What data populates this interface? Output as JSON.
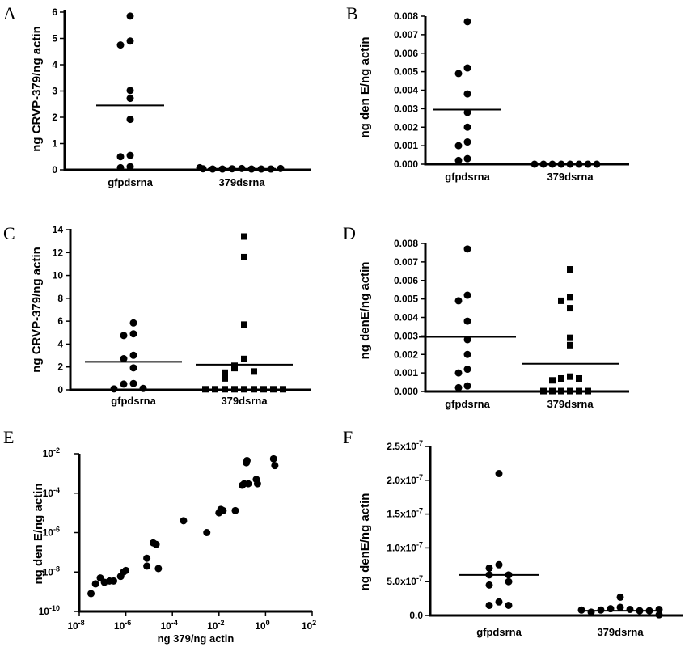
{
  "chart_data": [
    {
      "panel": "A",
      "type": "scatter",
      "ylabel": "ng CRVP-379/ng actin",
      "xlabel": "",
      "ylim": [
        0,
        6
      ],
      "yticks": [
        "0",
        "1",
        "2",
        "3",
        "4",
        "5",
        "6"
      ],
      "categories": [
        "gfpdsrna",
        "379dsrna"
      ],
      "series": [
        {
          "category": "gfpdsrna",
          "marker": "circle",
          "values": [
            5.85,
            4.9,
            4.75,
            3.02,
            2.72,
            1.92,
            0.55,
            0.5,
            0.12,
            0.08
          ],
          "mean": 2.45
        },
        {
          "category": "379dsrna",
          "marker": "circle",
          "values": [
            0.05,
            0.04,
            0.03,
            0.03,
            0.03,
            0.03,
            0.03,
            0.04,
            0.05,
            0.08
          ],
          "mean": 0.04
        }
      ]
    },
    {
      "panel": "B",
      "type": "scatter",
      "ylabel": "ng den E/ng actin",
      "xlabel": "",
      "ylim": [
        0,
        0.008
      ],
      "yticks": [
        "0.000",
        "0.001",
        "0.002",
        "0.003",
        "0.004",
        "0.005",
        "0.006",
        "0.007",
        "0.008"
      ],
      "categories": [
        "gfpdsrna",
        "379dsrna"
      ],
      "series": [
        {
          "category": "gfpdsrna",
          "marker": "circle",
          "values": [
            0.0077,
            0.0052,
            0.0049,
            0.0038,
            0.0028,
            0.002,
            0.0012,
            0.001,
            0.0003,
            0.0002
          ],
          "mean": 0.00295
        },
        {
          "category": "379dsrna",
          "marker": "circle",
          "values": [
            0,
            0,
            0,
            0,
            0,
            0,
            0,
            0
          ],
          "mean": 0
        }
      ]
    },
    {
      "panel": "C",
      "type": "scatter",
      "ylabel": "ng CRVP-379/ng actin",
      "xlabel": "",
      "ylim": [
        0,
        14
      ],
      "yticks": [
        "0",
        "2",
        "4",
        "6",
        "8",
        "10",
        "12",
        "14"
      ],
      "categories": [
        "gfpdsrna",
        "379dsrna"
      ],
      "series": [
        {
          "category": "gfpdsrna",
          "marker": "circle",
          "values": [
            5.85,
            4.9,
            4.75,
            3.02,
            2.72,
            1.92,
            0.55,
            0.5,
            0.12,
            0.08
          ],
          "mean": 2.45
        },
        {
          "category": "379dsrna",
          "marker": "square",
          "values": [
            13.4,
            11.6,
            5.7,
            2.7,
            2.1,
            1.9,
            1.6,
            1.5,
            1.3,
            1.0,
            0.05,
            0.05,
            0.05,
            0.05,
            0.05,
            0.05,
            0.05,
            0.05,
            0.05
          ],
          "mean": 2.2
        }
      ]
    },
    {
      "panel": "D",
      "type": "scatter",
      "ylabel": "ng denE/ng actin",
      "xlabel": "",
      "ylim": [
        0,
        0.008
      ],
      "yticks": [
        "0.000",
        "0.001",
        "0.002",
        "0.003",
        "0.004",
        "0.005",
        "0.006",
        "0.007",
        "0.008"
      ],
      "categories": [
        "gfpdsrna",
        "379dsrna"
      ],
      "series": [
        {
          "category": "gfpdsrna",
          "marker": "circle",
          "values": [
            0.0077,
            0.0052,
            0.0049,
            0.0038,
            0.0028,
            0.002,
            0.0012,
            0.001,
            0.0003,
            0.0002
          ],
          "mean": 0.00295
        },
        {
          "category": "379dsrna",
          "marker": "square",
          "values": [
            0.0066,
            0.0051,
            0.0049,
            0.0045,
            0.0029,
            0.0025,
            0.0008,
            0.0007,
            0.0007,
            0.0006,
            2e-05,
            2e-05,
            2e-05,
            2e-05,
            2e-05,
            2e-05
          ],
          "mean": 0.0015
        }
      ]
    },
    {
      "panel": "E",
      "type": "scatter",
      "ylabel": "ng den E/ng actin",
      "xlabel": "ng 379/ng actin",
      "xscale": "log",
      "yscale": "log",
      "xlim_exp": [
        -8,
        2
      ],
      "ylim_exp": [
        -10,
        -2
      ],
      "xtick_exps": [
        "-8",
        "-6",
        "-4",
        "-2",
        "0",
        "2"
      ],
      "ytick_exps": [
        "-10",
        "-8",
        "-6",
        "-4",
        "-2"
      ],
      "tick_base": "10",
      "points": [
        {
          "x": 3.2e-08,
          "y": 8e-10
        },
        {
          "x": 5e-08,
          "y": 2.5e-09
        },
        {
          "x": 8e-08,
          "y": 5e-09
        },
        {
          "x": 1.2e-07,
          "y": 3e-09
        },
        {
          "x": 2e-07,
          "y": 3.5e-09
        },
        {
          "x": 3e-07,
          "y": 3.5e-09
        },
        {
          "x": 6e-07,
          "y": 6e-09
        },
        {
          "x": 8e-07,
          "y": 1e-08
        },
        {
          "x": 1e-06,
          "y": 1.2e-08
        },
        {
          "x": 8e-06,
          "y": 2e-08
        },
        {
          "x": 8e-06,
          "y": 5e-08
        },
        {
          "x": 1.5e-05,
          "y": 3e-07
        },
        {
          "x": 2e-05,
          "y": 2.5e-07
        },
        {
          "x": 2.5e-05,
          "y": 1.5e-08
        },
        {
          "x": 0.0003,
          "y": 4e-06
        },
        {
          "x": 0.003,
          "y": 1e-06
        },
        {
          "x": 0.01,
          "y": 1e-05
        },
        {
          "x": 0.012,
          "y": 1.5e-05
        },
        {
          "x": 0.015,
          "y": 1.3e-05
        },
        {
          "x": 0.05,
          "y": 1.3e-05
        },
        {
          "x": 0.1,
          "y": 0.00025
        },
        {
          "x": 0.12,
          "y": 0.0003
        },
        {
          "x": 0.15,
          "y": 0.0035
        },
        {
          "x": 0.16,
          "y": 0.0045
        },
        {
          "x": 0.18,
          "y": 0.0003
        },
        {
          "x": 0.4,
          "y": 0.0005
        },
        {
          "x": 0.45,
          "y": 0.0003
        },
        {
          "x": 2.2,
          "y": 0.0055
        },
        {
          "x": 2.5,
          "y": 0.0025
        }
      ]
    },
    {
      "panel": "F",
      "type": "scatter",
      "ylabel": "ng denE/ng actin",
      "xlabel": "",
      "ylim": [
        0,
        2.5e-07
      ],
      "yticks": [
        "0.0",
        "5.0x10",
        "1.0x10",
        "1.5x10",
        "2.0x10",
        "2.5x10"
      ],
      "ytick_exp": "-7",
      "categories": [
        "gfpdsrna",
        "379dsrna"
      ],
      "series": [
        {
          "category": "gfpdsrna",
          "marker": "circle",
          "values": [
            2.1e-07,
            7.5e-08,
            7e-08,
            6e-08,
            6e-08,
            5e-08,
            4.5e-08,
            2e-08,
            1.5e-08,
            1.5e-08
          ],
          "mean": 6e-08
        },
        {
          "category": "379dsrna",
          "marker": "circle",
          "values": [
            2.7e-08,
            1.2e-08,
            1e-08,
            9e-09,
            8e-09,
            7e-09,
            5e-09,
            7e-09,
            8e-09,
            9e-09,
            1e-09
          ],
          "mean": 7e-09
        }
      ]
    }
  ]
}
